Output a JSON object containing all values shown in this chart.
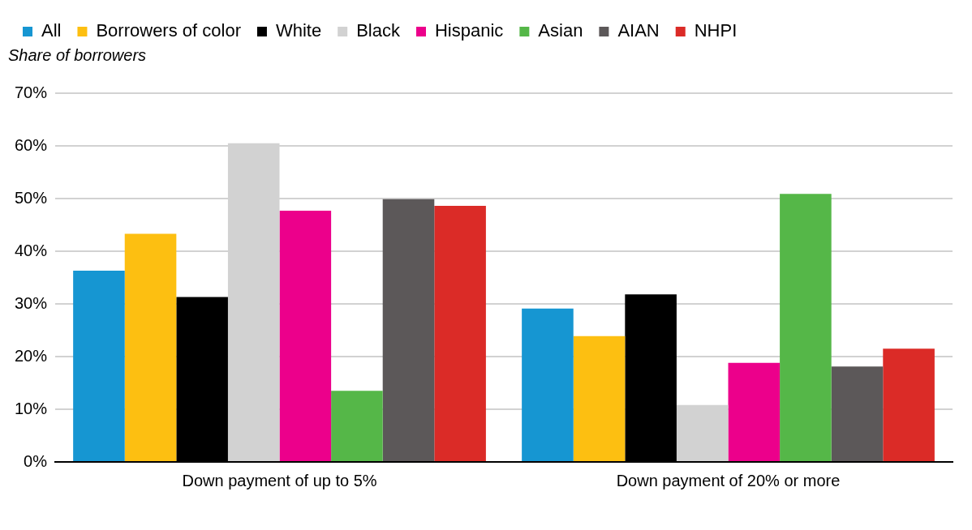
{
  "chart_data": {
    "type": "bar",
    "ylabel": "Share of borrowers",
    "categories": [
      "Down payment of up to 5%",
      "Down payment of 20% or more"
    ],
    "series": [
      {
        "name": "All",
        "color": "#1696d2",
        "values": [
          36.3,
          29.1
        ]
      },
      {
        "name": "Borrowers of color",
        "color": "#fdbf11",
        "values": [
          43.3,
          23.9
        ]
      },
      {
        "name": "White",
        "color": "#000000",
        "values": [
          31.3,
          31.8
        ]
      },
      {
        "name": "Black",
        "color": "#d2d2d2",
        "values": [
          60.5,
          10.8
        ]
      },
      {
        "name": "Hispanic",
        "color": "#ec008b",
        "values": [
          47.7,
          18.8
        ]
      },
      {
        "name": "Asian",
        "color": "#55b748",
        "values": [
          13.5,
          50.9
        ]
      },
      {
        "name": "AIAN",
        "color": "#5c5859",
        "values": [
          49.9,
          18.1
        ]
      },
      {
        "name": "NHPI",
        "color": "#db2b27",
        "values": [
          48.6,
          21.5
        ]
      }
    ],
    "ylim": [
      0,
      70
    ],
    "yticks": [
      {
        "value": 0,
        "label": "0%"
      },
      {
        "value": 10,
        "label": "10%"
      },
      {
        "value": 20,
        "label": "20%"
      },
      {
        "value": 30,
        "label": "30%"
      },
      {
        "value": 40,
        "label": "40%"
      },
      {
        "value": 50,
        "label": "50%"
      },
      {
        "value": 60,
        "label": "60%"
      },
      {
        "value": 70,
        "label": "70%"
      }
    ],
    "grid": "y",
    "legend": "top left"
  }
}
